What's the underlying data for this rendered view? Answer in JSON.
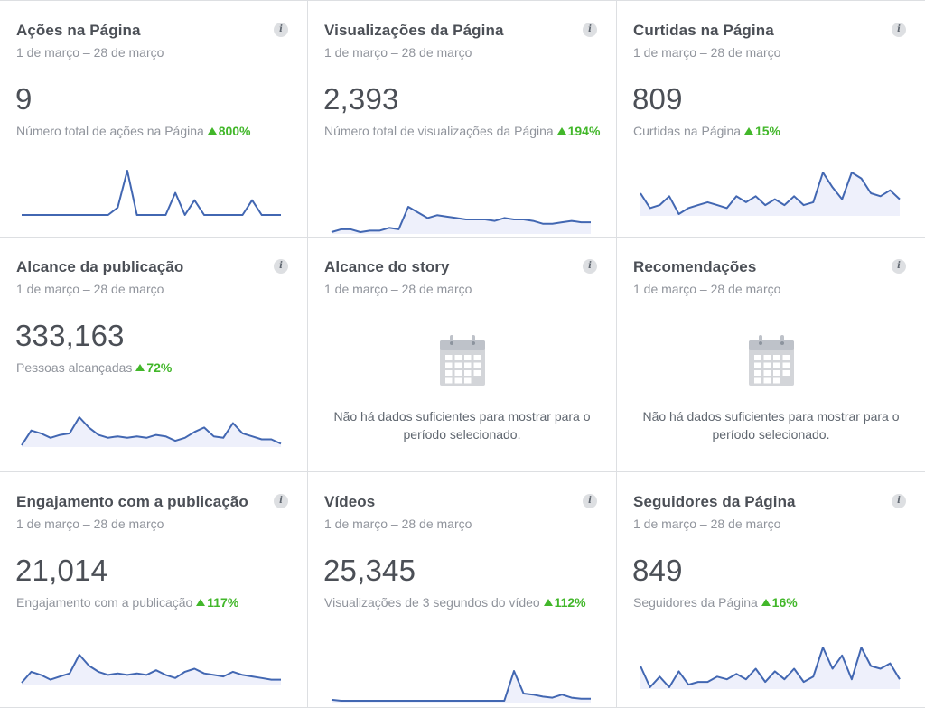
{
  "colors": {
    "line": "#4267b2",
    "fill": "#eef0fb",
    "positive": "#42b72a"
  },
  "info_glyph": "i",
  "cards": [
    {
      "title": "Ações na Página",
      "date": "1 de março – 28 de março",
      "value": "9",
      "subtitle": "Número total de ações na Página",
      "delta": "800%",
      "series": [
        0,
        0,
        0,
        0,
        0,
        0,
        0,
        0,
        0,
        0,
        1,
        6,
        0,
        0,
        0,
        0,
        3,
        0,
        2,
        0,
        0,
        0,
        0,
        0,
        2,
        0,
        0,
        0
      ]
    },
    {
      "title": "Visualizações da Página",
      "date": "1 de março – 28 de março",
      "value": "2,393",
      "subtitle": "Número total de visualizações da Página",
      "delta": "194%",
      "series": [
        10,
        12,
        12,
        10,
        11,
        11,
        13,
        12,
        28,
        24,
        20,
        22,
        21,
        20,
        19,
        19,
        19,
        18,
        20,
        19,
        19,
        18,
        16,
        16,
        17,
        18,
        17,
        17
      ]
    },
    {
      "title": "Curtidas na Página",
      "date": "1 de março – 28 de março",
      "value": "809",
      "subtitle": "Curtidas na Página",
      "delta": "15%",
      "series": [
        30,
        25,
        26,
        29,
        23,
        25,
        26,
        27,
        26,
        25,
        29,
        27,
        29,
        26,
        28,
        26,
        29,
        26,
        27,
        37,
        32,
        28,
        37,
        35,
        30,
        29,
        31,
        28
      ]
    },
    {
      "title": "Alcance da publicação",
      "date": "1 de março – 28 de março",
      "value": "333,163",
      "subtitle": "Pessoas alcançadas",
      "delta": "72%",
      "series": [
        15,
        25,
        23,
        20,
        22,
        23,
        34,
        27,
        22,
        20,
        21,
        20,
        21,
        20,
        22,
        21,
        18,
        20,
        24,
        27,
        21,
        20,
        30,
        23,
        21,
        19,
        19,
        16
      ]
    },
    {
      "title": "Alcance do story",
      "date": "1 de março – 28 de março",
      "empty": "Não há dados suficientes para mostrar para o período selecionado."
    },
    {
      "title": "Recomendações",
      "date": "1 de março – 28 de março",
      "empty": "Não há dados suficientes para mostrar para o período selecionado."
    },
    {
      "title": "Engajamento com a publicação",
      "date": "1 de março – 28 de março",
      "value": "21,014",
      "subtitle": "Engajamento com a publicação",
      "delta": "117%",
      "series": [
        15,
        22,
        20,
        17,
        19,
        21,
        33,
        26,
        22,
        20,
        21,
        20,
        21,
        20,
        23,
        20,
        18,
        22,
        24,
        21,
        20,
        19,
        22,
        20,
        19,
        18,
        17,
        17
      ]
    },
    {
      "title": "Vídeos",
      "date": "1 de março – 28 de março",
      "value": "25,345",
      "subtitle": "Visualizações de 3 segundos do vídeo",
      "delta": "112%",
      "series": [
        2,
        1,
        1,
        1,
        1,
        1,
        1,
        1,
        1,
        1,
        1,
        1,
        1,
        1,
        1,
        1,
        1,
        1,
        1,
        30,
        8,
        7,
        5,
        4,
        7,
        4,
        3,
        3
      ]
    },
    {
      "title": "Seguidores da Página",
      "date": "1 de março – 28 de março",
      "value": "849",
      "subtitle": "Seguidores da Página",
      "delta": "16%",
      "series": [
        30,
        22,
        26,
        22,
        28,
        23,
        24,
        24,
        26,
        25,
        27,
        25,
        29,
        24,
        28,
        25,
        29,
        24,
        26,
        37,
        29,
        34,
        25,
        37,
        30,
        29,
        31,
        25
      ]
    }
  ]
}
